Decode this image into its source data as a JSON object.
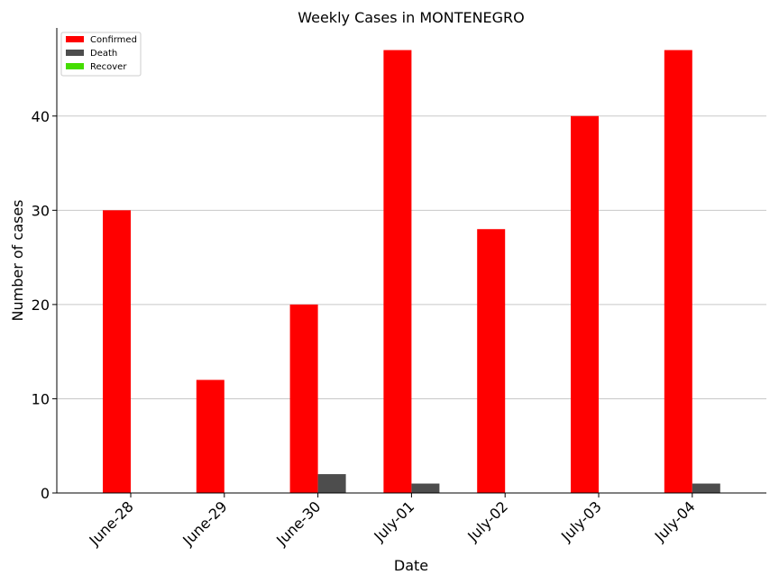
{
  "chart_data": {
    "type": "bar",
    "title": "Weekly Cases in MONTENEGRO",
    "xlabel": "Date",
    "ylabel": "Number of cases",
    "categories": [
      "June-28",
      "June-29",
      "June-30",
      "July-01",
      "July-02",
      "July-03",
      "July-04"
    ],
    "series": [
      {
        "name": "Confirmed",
        "color": "#ff0000",
        "values": [
          30,
          12,
          20,
          47,
          28,
          40,
          47
        ]
      },
      {
        "name": "Death",
        "color": "#4d4d4d",
        "values": [
          0,
          0,
          2,
          1,
          0,
          0,
          1
        ]
      },
      {
        "name": "Recover",
        "color": "#44dd00",
        "values": [
          0,
          0,
          0,
          0,
          0,
          0,
          0
        ]
      }
    ],
    "ylim": [
      0,
      49.35
    ],
    "yticks": [
      0,
      10,
      20,
      30,
      40
    ],
    "grid": "horizontal",
    "legend_position": "top-left"
  }
}
